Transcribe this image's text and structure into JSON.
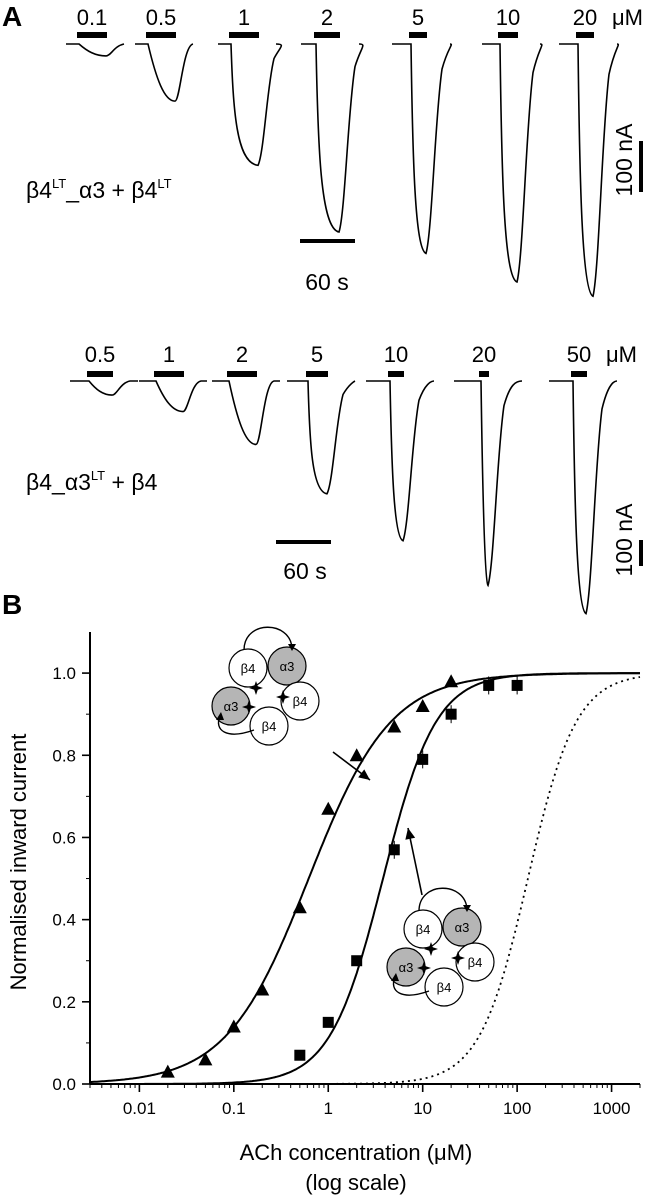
{
  "panel_a": {
    "label": "A",
    "trace_set_1": {
      "concentrations": [
        "0.1",
        "0.5",
        "1",
        "2",
        "5",
        "10",
        "20"
      ],
      "unit": "μM",
      "peak_fractions": [
        0.05,
        0.24,
        0.51,
        0.79,
        0.88,
        1.0,
        1.06
      ],
      "construct": {
        "b": "β4",
        "sup1": "LT",
        "mid": "_α3 + β4",
        "sup2": "LT"
      },
      "time_scale": "60 s",
      "current_scale": "100 nA"
    },
    "trace_set_2": {
      "concentrations": [
        "0.5",
        "1",
        "2",
        "5",
        "10",
        "20",
        "50"
      ],
      "unit": "μM",
      "peak_fractions": [
        0.06,
        0.13,
        0.27,
        0.48,
        0.68,
        0.87,
        0.99
      ],
      "construct": {
        "pre": "β4_α3",
        "sup": "LT",
        "post": " + β4"
      },
      "time_scale": "60 s",
      "current_scale": "100 nA"
    }
  },
  "panel_b": {
    "label": "B",
    "subunits": {
      "b4": "β4",
      "a3": "α3"
    }
  },
  "chart_data": {
    "type": "scatter",
    "xlabel": "ACh concentration (μM)",
    "xlabel_sub": "(log scale)",
    "ylabel": "Normalised inward current",
    "x_scale": "log",
    "xlim": [
      0.003,
      2000
    ],
    "ylim": [
      0,
      1.1
    ],
    "x_ticks": [
      "0.01",
      "0.1",
      "1",
      "10",
      "100",
      "1000"
    ],
    "y_ticks": [
      "0.0",
      "0.2",
      "0.4",
      "0.6",
      "0.8",
      "1.0"
    ],
    "series": [
      {
        "marker": "triangle",
        "x": [
          0.02,
          0.05,
          0.1,
          0.2,
          0.5,
          1,
          2,
          5,
          10,
          20
        ],
        "y": [
          0.03,
          0.06,
          0.14,
          0.23,
          0.43,
          0.67,
          0.8,
          0.87,
          0.92,
          0.98
        ],
        "fit": {
          "ec50": 0.62,
          "hill": 1.0
        }
      },
      {
        "marker": "square",
        "x": [
          0.5,
          1,
          2,
          5,
          10,
          20,
          50,
          100
        ],
        "y": [
          0.07,
          0.15,
          0.3,
          0.57,
          0.79,
          0.9,
          0.97,
          0.97
        ],
        "fit": {
          "ec50": 3.8,
          "hill": 1.55
        }
      },
      {
        "line_style": "dotted",
        "fit": {
          "ec50": 130,
          "hill": 1.7
        }
      }
    ]
  }
}
